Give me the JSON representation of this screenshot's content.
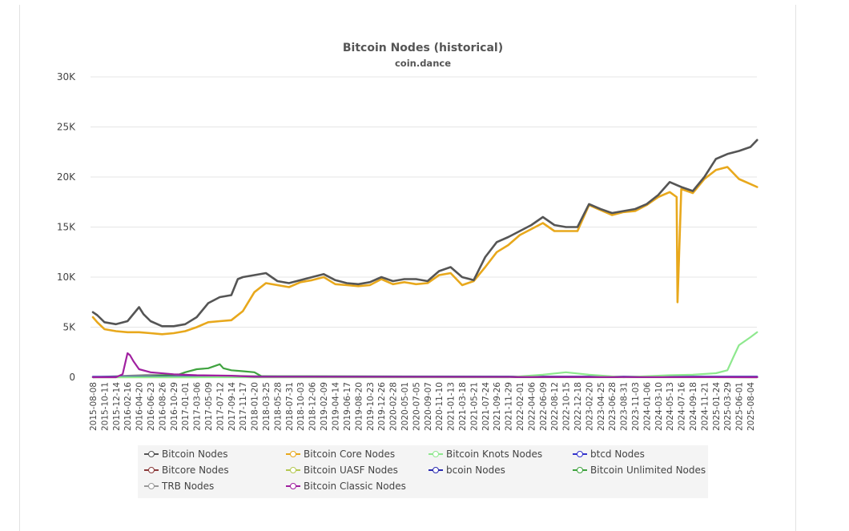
{
  "chart_data": {
    "type": "line",
    "title": "Bitcoin Nodes (historical)",
    "subtitle": "coin.dance",
    "xlabel": "",
    "ylabel": "",
    "ylim": [
      0,
      30000
    ],
    "yticks": [
      0,
      5000,
      10000,
      15000,
      20000,
      25000,
      30000
    ],
    "ytick_labels": [
      "0",
      "5K",
      "10K",
      "15K",
      "20K",
      "25K",
      "30K"
    ],
    "x_tick_labels": [
      "2015-08-08",
      "2015-10-11",
      "2015-12-14",
      "2016-02-16",
      "2016-04-20",
      "2016-06-23",
      "2016-08-26",
      "2016-10-29",
      "2017-01-01",
      "2017-03-06",
      "2017-05-09",
      "2017-07-12",
      "2017-09-14",
      "2017-11-17",
      "2018-01-20",
      "2018-03-25",
      "2018-05-28",
      "2018-07-31",
      "2018-10-03",
      "2018-12-06",
      "2019-02-09",
      "2019-04-14",
      "2019-06-17",
      "2019-08-20",
      "2019-10-23",
      "2019-12-26",
      "2020-02-28",
      "2020-05-01",
      "2020-07-05",
      "2020-09-07",
      "2020-11-10",
      "2021-01-13",
      "2021-03-18",
      "2021-05-21",
      "2021-07-24",
      "2021-09-26",
      "2021-11-29",
      "2022-02-01",
      "2022-04-06",
      "2022-06-09",
      "2022-08-12",
      "2022-10-15",
      "2022-12-18",
      "2023-02-20",
      "2023-04-25",
      "2023-06-28",
      "2023-08-31",
      "2023-11-03",
      "2024-01-06",
      "2024-03-10",
      "2024-05-13",
      "2024-07-16",
      "2024-09-18",
      "2024-11-21",
      "2025-01-24",
      "2025-03-29",
      "2025-06-01",
      "2025-08-04"
    ],
    "grid": true,
    "legend_position": "bottom",
    "series": [
      {
        "name": "Bitcoin Nodes",
        "color": "#555555",
        "x": [
          "2015-08-08",
          "2015-09-01",
          "2015-10-11",
          "2015-12-14",
          "2016-02-16",
          "2016-04-20",
          "2016-05-15",
          "2016-06-23",
          "2016-08-26",
          "2016-10-29",
          "2017-01-01",
          "2017-03-06",
          "2017-05-09",
          "2017-07-12",
          "2017-09-14",
          "2017-10-20",
          "2017-11-17",
          "2018-01-20",
          "2018-03-25",
          "2018-05-28",
          "2018-07-31",
          "2018-10-03",
          "2018-12-06",
          "2019-02-09",
          "2019-04-14",
          "2019-06-17",
          "2019-08-20",
          "2019-10-23",
          "2019-12-26",
          "2020-02-28",
          "2020-05-01",
          "2020-07-05",
          "2020-09-07",
          "2020-11-10",
          "2021-01-13",
          "2021-03-18",
          "2021-05-21",
          "2021-07-24",
          "2021-09-26",
          "2021-11-29",
          "2022-02-01",
          "2022-04-06",
          "2022-06-09",
          "2022-08-12",
          "2022-10-15",
          "2022-12-18",
          "2023-02-20",
          "2023-04-25",
          "2023-06-28",
          "2023-08-31",
          "2023-11-03",
          "2024-01-06",
          "2024-03-10",
          "2024-05-13",
          "2024-07-16",
          "2024-09-18",
          "2024-11-21",
          "2025-01-24",
          "2025-03-29",
          "2025-06-01",
          "2025-08-04",
          "2025-09-10"
        ],
        "y": [
          6500,
          6200,
          5500,
          5300,
          5600,
          7000,
          6300,
          5600,
          5100,
          5100,
          5300,
          6000,
          7400,
          8000,
          8200,
          9800,
          10000,
          10200,
          10400,
          9600,
          9400,
          9700,
          10000,
          10300,
          9700,
          9400,
          9300,
          9500,
          10000,
          9600,
          9800,
          9800,
          9600,
          10600,
          11000,
          10000,
          9700,
          12000,
          13500,
          14000,
          14600,
          15200,
          16000,
          15200,
          15000,
          15000,
          17300,
          16800,
          16400,
          16600,
          16800,
          17300,
          18200,
          19500,
          19000,
          18600,
          20000,
          21800,
          22300,
          22600,
          23000,
          23700
        ]
      },
      {
        "name": "Bitcoin Core Nodes",
        "color": "#e8a81c",
        "x": [
          "2015-08-08",
          "2015-09-01",
          "2015-10-11",
          "2015-12-14",
          "2016-02-16",
          "2016-04-20",
          "2016-06-23",
          "2016-08-26",
          "2016-10-29",
          "2017-01-01",
          "2017-03-06",
          "2017-05-09",
          "2017-07-12",
          "2017-09-14",
          "2017-11-17",
          "2018-01-20",
          "2018-03-25",
          "2018-05-28",
          "2018-07-31",
          "2018-10-03",
          "2018-12-06",
          "2019-02-09",
          "2019-04-14",
          "2019-06-17",
          "2019-08-20",
          "2019-10-23",
          "2019-12-26",
          "2020-02-28",
          "2020-05-01",
          "2020-07-05",
          "2020-09-07",
          "2020-11-10",
          "2021-01-13",
          "2021-03-18",
          "2021-05-21",
          "2021-07-24",
          "2021-09-26",
          "2021-11-29",
          "2022-02-01",
          "2022-04-06",
          "2022-06-09",
          "2022-08-12",
          "2022-10-15",
          "2022-12-18",
          "2023-02-20",
          "2023-04-25",
          "2023-06-28",
          "2023-08-31",
          "2023-11-03",
          "2024-01-06",
          "2024-03-10",
          "2024-05-13",
          "2024-06-20",
          "2024-06-25",
          "2024-07-16",
          "2024-09-18",
          "2024-11-21",
          "2025-01-24",
          "2025-03-29",
          "2025-06-01",
          "2025-08-04",
          "2025-09-10"
        ],
        "y": [
          6000,
          5500,
          4800,
          4600,
          4500,
          4500,
          4400,
          4300,
          4400,
          4600,
          5000,
          5500,
          5600,
          5700,
          6600,
          8500,
          9400,
          9200,
          9000,
          9500,
          9700,
          10000,
          9300,
          9200,
          9100,
          9200,
          9800,
          9300,
          9500,
          9300,
          9400,
          10200,
          10400,
          9200,
          9600,
          11000,
          12500,
          13200,
          14200,
          14800,
          15400,
          14600,
          14600,
          14600,
          17200,
          16700,
          16200,
          16500,
          16600,
          17200,
          18000,
          18500,
          18000,
          7500,
          18800,
          18400,
          19800,
          20700,
          21000,
          19800,
          19300,
          19000
        ]
      },
      {
        "name": "Bitcoin Knots Nodes",
        "color": "#8ee88e",
        "x": [
          "2015-08-08",
          "2021-11-29",
          "2022-06-09",
          "2022-10-15",
          "2023-02-20",
          "2023-08-31",
          "2024-05-13",
          "2024-09-18",
          "2025-01-24",
          "2025-03-29",
          "2025-05-01",
          "2025-06-01",
          "2025-08-04",
          "2025-09-10"
        ],
        "y": [
          0,
          0,
          250,
          500,
          250,
          0,
          200,
          250,
          400,
          700,
          2000,
          3200,
          4000,
          4500
        ]
      },
      {
        "name": "btcd Nodes",
        "color": "#3333cc",
        "x": [
          "2015-08-08",
          "2025-09-10"
        ],
        "y": [
          50,
          50
        ]
      },
      {
        "name": "Bitcore Nodes",
        "color": "#8b3a3a",
        "x": [
          "2015-08-08",
          "2025-09-10"
        ],
        "y": [
          20,
          20
        ]
      },
      {
        "name": "Bitcoin UASF Nodes",
        "color": "#b4c850",
        "x": [
          "2015-08-08",
          "2017-03-06",
          "2017-06-01",
          "2017-09-14",
          "2018-01-01",
          "2025-09-10"
        ],
        "y": [
          0,
          0,
          60,
          40,
          0,
          0
        ]
      },
      {
        "name": "bcoin Nodes",
        "color": "#2a2ab0",
        "x": [
          "2015-08-08",
          "2025-09-10"
        ],
        "y": [
          30,
          30
        ]
      },
      {
        "name": "Bitcoin Unlimited Nodes",
        "color": "#3fa33f",
        "x": [
          "2015-08-08",
          "2016-06-23",
          "2016-12-01",
          "2017-01-01",
          "2017-03-06",
          "2017-05-09",
          "2017-07-12",
          "2017-08-01",
          "2017-09-14",
          "2017-11-17",
          "2018-01-20",
          "2018-03-01",
          "2025-09-10"
        ],
        "y": [
          0,
          100,
          300,
          500,
          800,
          900,
          1300,
          900,
          700,
          600,
          500,
          100,
          0
        ]
      },
      {
        "name": "TRB Nodes",
        "color": "#999999",
        "x": [
          "2015-08-08",
          "2016-02-16",
          "2016-06-23",
          "2016-10-29",
          "2017-05-09",
          "2018-05-28",
          "2025-09-10"
        ],
        "y": [
          0,
          150,
          250,
          200,
          150,
          100,
          50
        ]
      },
      {
        "name": "Bitcoin Classic Nodes",
        "color": "#a020a0",
        "x": [
          "2015-08-08",
          "2015-12-14",
          "2016-01-20",
          "2016-02-16",
          "2016-03-01",
          "2016-03-20",
          "2016-04-20",
          "2016-06-23",
          "2016-10-29",
          "2017-03-06",
          "2017-09-14",
          "2018-01-20",
          "2025-09-10"
        ],
        "y": [
          0,
          0,
          300,
          2400,
          2200,
          1600,
          800,
          500,
          300,
          200,
          150,
          50,
          0
        ]
      }
    ]
  }
}
